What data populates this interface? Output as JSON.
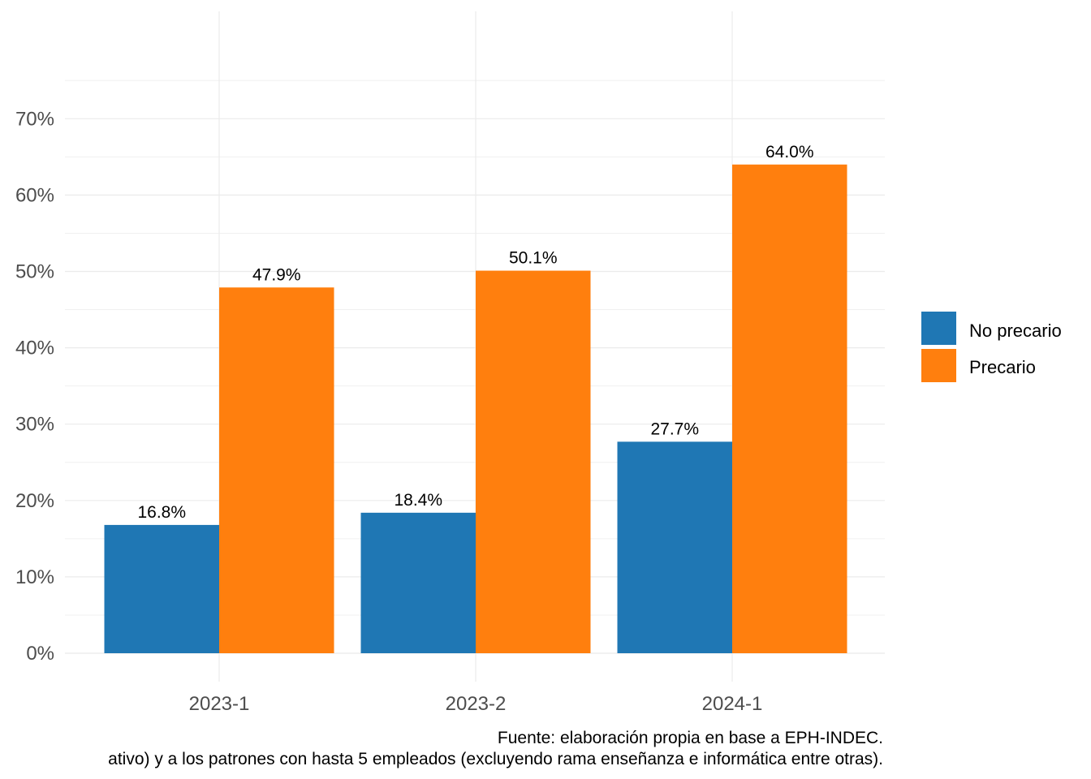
{
  "chart_data": {
    "type": "bar",
    "categories": [
      "2023-1",
      "2023-2",
      "2024-1"
    ],
    "series": [
      {
        "name": "No precario",
        "color": "#1f77b4",
        "values": [
          16.8,
          18.4,
          27.7
        ],
        "labels": [
          "16.8%",
          "18.4%",
          "27.7%"
        ]
      },
      {
        "name": "Precario",
        "color": "#ff7f0e",
        "values": [
          47.9,
          50.1,
          64.0
        ],
        "labels": [
          "47.9%",
          "50.1%",
          "64.0%"
        ]
      }
    ],
    "y_ticks": [
      0,
      10,
      20,
      30,
      40,
      50,
      60,
      70
    ],
    "y_tick_labels": [
      "0%",
      "10%",
      "20%",
      "30%",
      "40%",
      "50%",
      "60%",
      "70%"
    ],
    "ylim": [
      -3.6,
      84
    ],
    "grid": true,
    "legend_position": "right",
    "caption_lines": [
      "Fuente: elaboración propia en base a EPH-INDEC.",
      "ativo) y a los patrones con hasta 5 empleados (excluyendo rama enseñanza e informática entre otras)."
    ]
  }
}
